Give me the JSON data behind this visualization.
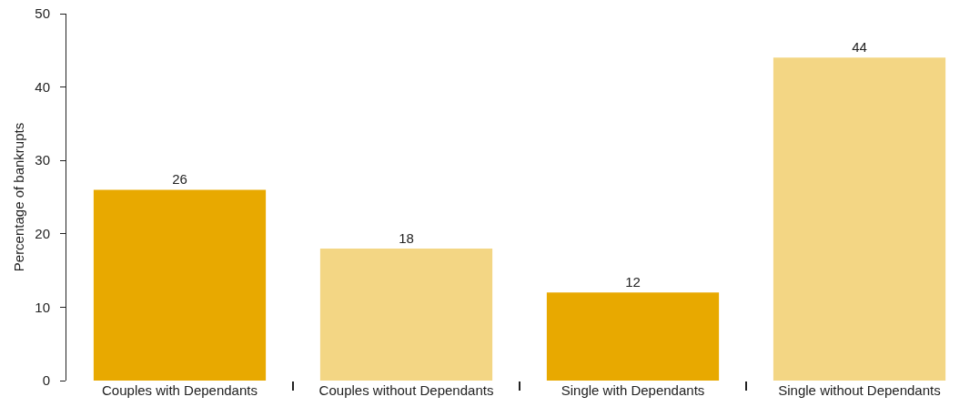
{
  "chart_data": {
    "type": "bar",
    "ylabel": "Percentage of bankrupts",
    "categories": [
      "Couples with Dependants",
      "Couples without Dependants",
      "Single with Dependants",
      "Single without Dependants"
    ],
    "values": [
      26,
      18,
      12,
      44
    ],
    "colors": [
      "#e8a900",
      "#f3d684",
      "#e8a900",
      "#f3d684"
    ],
    "ylim": [
      0,
      50
    ],
    "yticks": [
      0,
      10,
      20,
      30,
      40,
      50
    ],
    "grid": false,
    "data_labels": true
  }
}
